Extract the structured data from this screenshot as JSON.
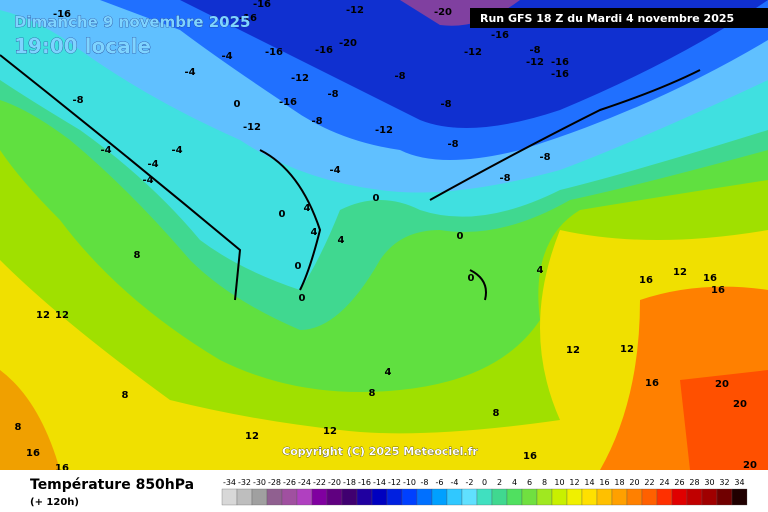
{
  "header": {
    "date": "Dimanche 9 novembre 2025",
    "time": "19:00 locale",
    "run": "Run GFS 18 Z du Mardi 4 novembre 2025"
  },
  "footer": {
    "title": "Température 850hPa",
    "subtitle": "(+ 120h)",
    "copyright": "Copyright (C) 2025 Meteociel.fr"
  },
  "legend": {
    "ticks": [
      -34,
      -32,
      -30,
      -28,
      -26,
      -24,
      -22,
      -20,
      -18,
      -16,
      -14,
      -12,
      -10,
      -8,
      -6,
      -4,
      -2,
      0,
      2,
      4,
      6,
      8,
      10,
      12,
      14,
      16,
      18,
      20,
      22,
      24,
      26,
      28,
      30,
      32,
      34
    ],
    "colors": [
      "#d8d8d8",
      "#bebebe",
      "#a0a0a0",
      "#906090",
      "#a050a0",
      "#b040c0",
      "#8000a0",
      "#600080",
      "#400070",
      "#2000a0",
      "#0000c0",
      "#0020e0",
      "#0040ff",
      "#0070ff",
      "#00a0ff",
      "#30c8ff",
      "#60e0ff",
      "#40e0c0",
      "#40d890",
      "#50e060",
      "#70e040",
      "#a0e820",
      "#c8f000",
      "#f0f000",
      "#ffe000",
      "#ffc000",
      "#ffa000",
      "#ff8000",
      "#ff6000",
      "#ff3000",
      "#e00000",
      "#c00000",
      "#a00000",
      "#700000",
      "#200000"
    ]
  },
  "map_labels": [
    "-16",
    "-16",
    "-16",
    "-12",
    "-20",
    "-20",
    "-16",
    "-16",
    "-4",
    "-12",
    "-4",
    "-8",
    "0",
    "-16",
    "-8",
    "-8",
    "-12",
    "-8",
    "-12",
    "-12",
    "-16",
    "-8",
    "-12",
    "-16",
    "-16",
    "-8",
    "-8",
    "-8",
    "-8",
    "-4",
    "-4",
    "-4",
    "-4",
    "-4",
    "0",
    "0",
    "4",
    "4",
    "4",
    "0",
    "0",
    "0",
    "0",
    "4",
    "8",
    "12",
    "12",
    "4",
    "8",
    "8",
    "12",
    "12",
    "8",
    "16",
    "16",
    "16",
    "12",
    "16",
    "16",
    "12",
    "12",
    "16",
    "20",
    "20",
    "20",
    "16",
    "8"
  ]
}
